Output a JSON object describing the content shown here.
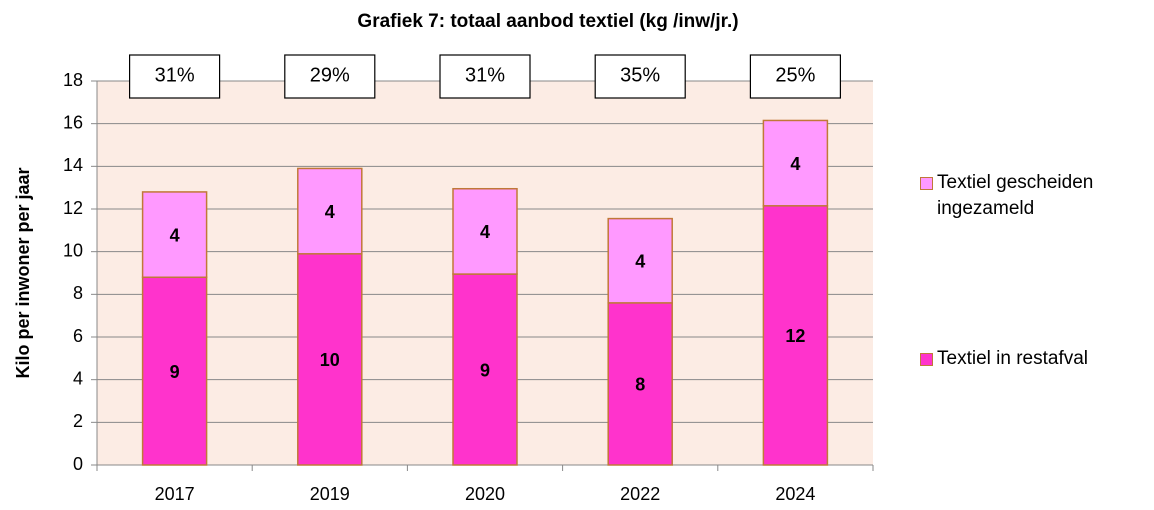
{
  "chart_data": {
    "type": "stacked_bar",
    "title": "Grafiek  7: totaal aanbod textiel  (kg /inw/jr.)",
    "y_label": "Kilo per inwoner per jaar",
    "categories": [
      "2017",
      "2019",
      "2020",
      "2022",
      "2024"
    ],
    "series": [
      {
        "name": "Textiel in restafval",
        "color": "#ff33cc",
        "values": [
          8.8,
          9.9,
          8.95,
          7.6,
          12.15
        ],
        "value_labels": [
          "9",
          "10",
          "9",
          "8",
          "12"
        ]
      },
      {
        "name": "Textiel gescheiden ingezameld",
        "color": "#ff99ff",
        "values": [
          4.0,
          4.0,
          4.0,
          3.95,
          4.0
        ],
        "value_labels": [
          "4",
          "4",
          "4",
          "4",
          "4"
        ]
      }
    ],
    "annotations": [
      "31%",
      "29%",
      "31%",
      "35%",
      "25%"
    ],
    "ylim": [
      0,
      18
    ],
    "yticks": [
      0,
      2,
      4,
      6,
      8,
      10,
      12,
      14,
      16,
      18
    ],
    "grid": true,
    "legend": "right",
    "plot_background": "#fcece4",
    "bar_edge": "#c07838"
  }
}
